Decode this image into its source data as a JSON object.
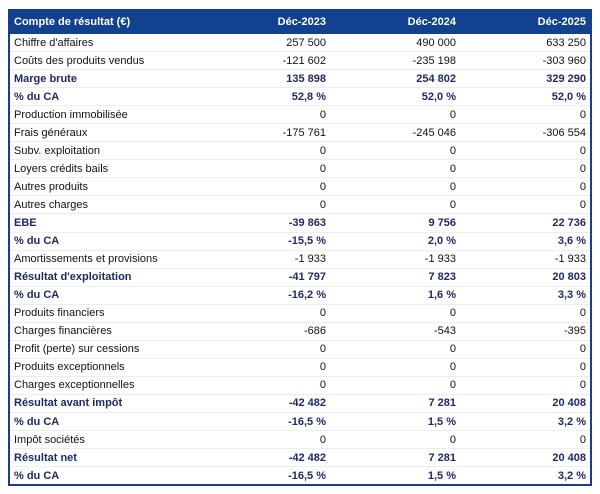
{
  "table": {
    "title": "Compte de résultat (€)",
    "columns": [
      "Déc-2023",
      "Déc-2024",
      "Déc-2025"
    ],
    "colors": {
      "header_background": "#12418f",
      "header_text": "#ffffff",
      "bold_row_text": "#1f2a64",
      "normal_row_text": "#111111",
      "outer_border": "#1b3c8f",
      "row_separator": "#ededed"
    },
    "rows": [
      {
        "label": "Chiffre d'affaires",
        "values": [
          "257 500",
          "490 000",
          "633 250"
        ],
        "bold": false
      },
      {
        "label": "Coûts des produits vendus",
        "values": [
          "-121 602",
          "-235 198",
          "-303 960"
        ],
        "bold": false
      },
      {
        "label": "Marge brute",
        "values": [
          "135 898",
          "254 802",
          "329 290"
        ],
        "bold": true
      },
      {
        "label": "% du CA",
        "values": [
          "52,8 %",
          "52,0 %",
          "52,0 %"
        ],
        "bold": true
      },
      {
        "label": "Production immobilisée",
        "values": [
          "0",
          "0",
          "0"
        ],
        "bold": false
      },
      {
        "label": "Frais généraux",
        "values": [
          "-175 761",
          "-245 046",
          "-306 554"
        ],
        "bold": false
      },
      {
        "label": "Subv. exploitation",
        "values": [
          "0",
          "0",
          "0"
        ],
        "bold": false
      },
      {
        "label": "Loyers crédits bails",
        "values": [
          "0",
          "0",
          "0"
        ],
        "bold": false
      },
      {
        "label": "Autres produits",
        "values": [
          "0",
          "0",
          "0"
        ],
        "bold": false
      },
      {
        "label": "Autres charges",
        "values": [
          "0",
          "0",
          "0"
        ],
        "bold": false
      },
      {
        "label": "EBE",
        "values": [
          "-39 863",
          "9 756",
          "22 736"
        ],
        "bold": true
      },
      {
        "label": "% du CA",
        "values": [
          "-15,5 %",
          "2,0 %",
          "3,6 %"
        ],
        "bold": true
      },
      {
        "label": "Amortissements et provisions",
        "values": [
          "-1 933",
          "-1 933",
          "-1 933"
        ],
        "bold": false
      },
      {
        "label": "Résultat d'exploitation",
        "values": [
          "-41 797",
          "7 823",
          "20 803"
        ],
        "bold": true
      },
      {
        "label": "% du CA",
        "values": [
          "-16,2 %",
          "1,6 %",
          "3,3 %"
        ],
        "bold": true
      },
      {
        "label": "Produits financiers",
        "values": [
          "0",
          "0",
          "0"
        ],
        "bold": false
      },
      {
        "label": "Charges financières",
        "values": [
          "-686",
          "-543",
          "-395"
        ],
        "bold": false
      },
      {
        "label": "Profit (perte) sur cessions",
        "values": [
          "0",
          "0",
          "0"
        ],
        "bold": false
      },
      {
        "label": "Produits exceptionnels",
        "values": [
          "0",
          "0",
          "0"
        ],
        "bold": false
      },
      {
        "label": "Charges exceptionnelles",
        "values": [
          "0",
          "0",
          "0"
        ],
        "bold": false
      },
      {
        "label": "Résultat avant impôt",
        "values": [
          "-42 482",
          "7 281",
          "20 408"
        ],
        "bold": true
      },
      {
        "label": "% du CA",
        "values": [
          "-16,5 %",
          "1,5 %",
          "3,2 %"
        ],
        "bold": true
      },
      {
        "label": "Impôt sociétés",
        "values": [
          "0",
          "0",
          "0"
        ],
        "bold": false
      },
      {
        "label": "Résultat net",
        "values": [
          "-42 482",
          "7 281",
          "20 408"
        ],
        "bold": true
      },
      {
        "label": "% du CA",
        "values": [
          "-16,5 %",
          "1,5 %",
          "3,2 %"
        ],
        "bold": true
      }
    ]
  }
}
